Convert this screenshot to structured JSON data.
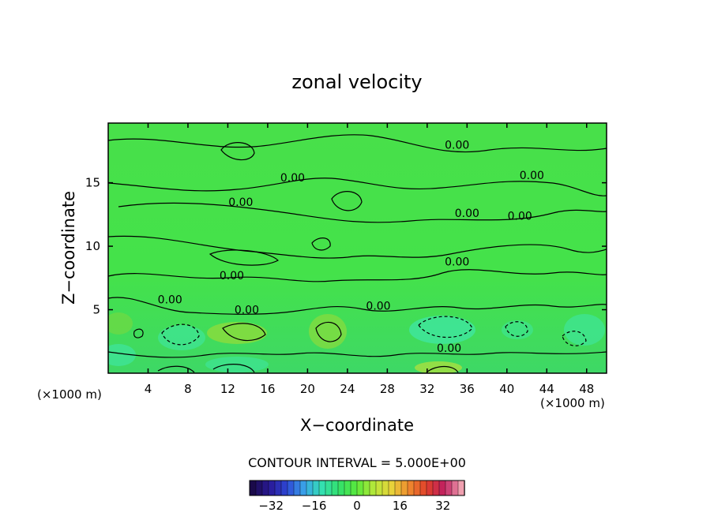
{
  "chart_data": {
    "type": "heatmap",
    "title": "zonal velocity",
    "xlabel": "X−coordinate",
    "ylabel": "Z−coordinate",
    "x_unit_left": "(×1000 m)",
    "x_unit_right": "(×1000 m)",
    "xlim": [
      0,
      50
    ],
    "ylim": [
      0,
      19.7
    ],
    "x_ticks": [
      4,
      8,
      12,
      16,
      20,
      24,
      28,
      32,
      36,
      40,
      44,
      48
    ],
    "y_ticks": [
      5,
      10,
      15
    ],
    "contour_interval_label": "CONTOUR INTERVAL = 5.000E+00",
    "contour_labels": [
      {
        "text": "0.00",
        "x": 35.0,
        "z": 18.0
      },
      {
        "text": "0.00",
        "x": 42.5,
        "z": 15.6
      },
      {
        "text": "0.00",
        "x": 18.5,
        "z": 15.4
      },
      {
        "text": "0.00",
        "x": 13.3,
        "z": 13.5
      },
      {
        "text": "0.00",
        "x": 36.0,
        "z": 12.6
      },
      {
        "text": "0.00",
        "x": 41.3,
        "z": 12.4
      },
      {
        "text": "0.00",
        "x": 35.0,
        "z": 8.8
      },
      {
        "text": "0.00",
        "x": 12.4,
        "z": 7.7
      },
      {
        "text": "0.00",
        "x": 6.2,
        "z": 5.8
      },
      {
        "text": "0.00",
        "x": 13.9,
        "z": 5.0
      },
      {
        "text": "0.00",
        "x": 27.1,
        "z": 5.3
      },
      {
        "text": "0.00",
        "x": 34.2,
        "z": 2.0
      }
    ],
    "colorbar": {
      "min": -40,
      "max": 40,
      "ticks": [
        -32,
        -16,
        0,
        16,
        32
      ],
      "tick_labels": [
        "−32",
        "−16",
        "0",
        "16",
        "32"
      ],
      "colors": [
        "#1a0a4a",
        "#2a1a9a",
        "#2e49d6",
        "#3aa6ea",
        "#34e0b0",
        "#33e06a",
        "#5ae83a",
        "#b8e83a",
        "#e8d23a",
        "#ef8a2e",
        "#e0402a",
        "#c02060",
        "#f0a0b0"
      ]
    },
    "field_colors": {
      "background": "#44e24a",
      "faster_negative": "#3ee6a0",
      "slight_positive": "#8cdc3c",
      "contour_line": "#000000"
    }
  }
}
